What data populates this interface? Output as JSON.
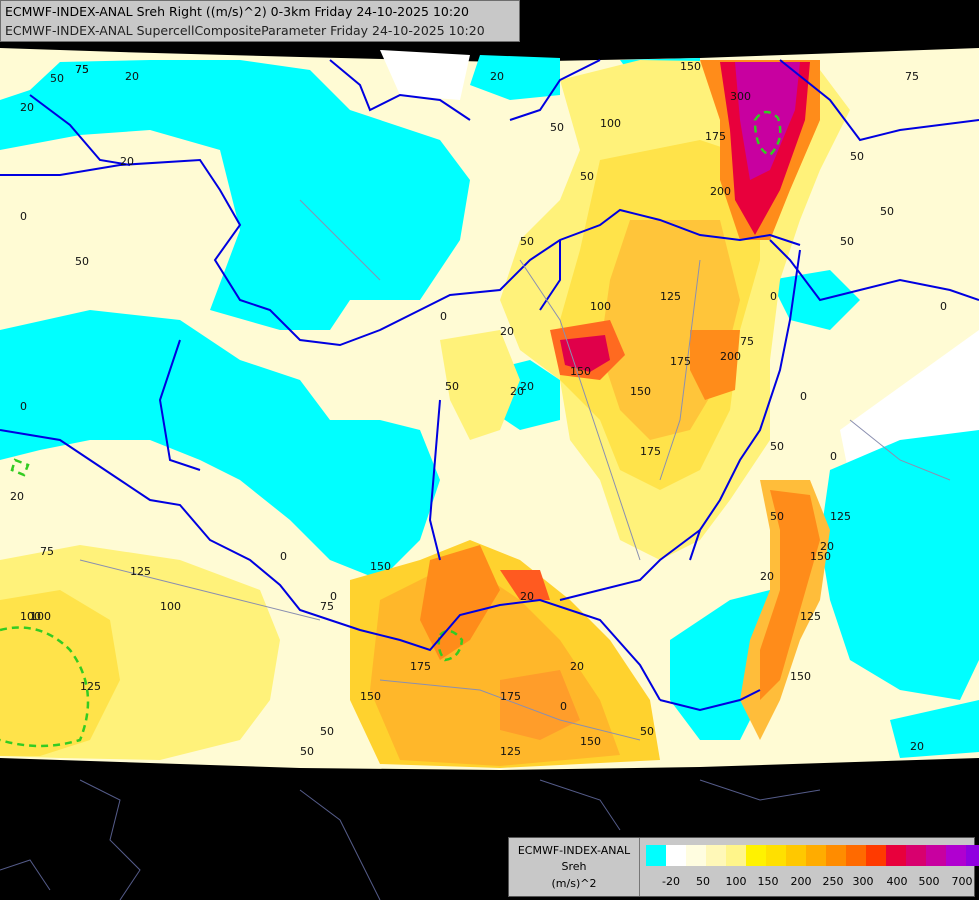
{
  "header": {
    "line1": "ECMWF-INDEX-ANAL Sreh Right ((m/s)^2) 0-3km Friday 24-10-2025 10:20",
    "line2": "ECMWF-INDEX-ANAL SupercellCompositeParameter Friday 24-10-2025 10:20"
  },
  "legend": {
    "model": "ECMWF-INDEX-ANAL",
    "field": "Sreh",
    "unit": "(m/s)^2",
    "swatch_colors": [
      "#00ffff",
      "#ffffff",
      "#fffde0",
      "#fff8b8",
      "#fff58a",
      "#fff200",
      "#ffe000",
      "#ffc800",
      "#ffac00",
      "#ff8c00",
      "#ff6a00",
      "#ff3a00",
      "#e8003c",
      "#d8006e",
      "#c800a0",
      "#b000d0",
      "#9000e0",
      "#6000c0",
      "#30009a",
      "#00007a"
    ],
    "tick_labels": [
      "-20",
      "50",
      "100",
      "150",
      "200",
      "250",
      "300",
      "400",
      "500",
      "700"
    ]
  },
  "map": {
    "contour_labels": [
      "20",
      "50",
      "20",
      "75",
      "75",
      "20",
      "50",
      "100",
      "150",
      "300",
      "175",
      "200",
      "20",
      "50",
      "50",
      "50",
      "75",
      "75",
      "50",
      "50",
      "50",
      "0",
      "0",
      "0",
      "20",
      "125",
      "100",
      "0",
      "0",
      "50",
      "20",
      "150",
      "20",
      "150",
      "175",
      "175",
      "200",
      "50",
      "20",
      "20",
      "0",
      "0",
      "0",
      "20",
      "50",
      "50",
      "125",
      "150",
      "75",
      "125",
      "100",
      "100",
      "125",
      "75",
      "150",
      "175",
      "175",
      "125",
      "150",
      "150",
      "50",
      "20",
      "100",
      "150",
      "125",
      "0",
      "20",
      "20",
      "50",
      "0"
    ]
  }
}
